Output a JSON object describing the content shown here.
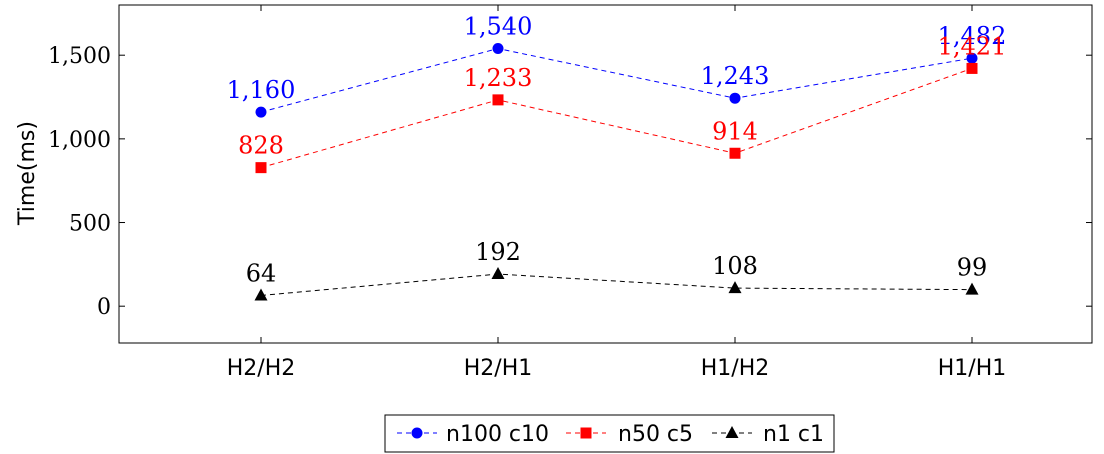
{
  "chart_data": {
    "type": "line",
    "ylabel": "Time(ms)",
    "xlabel": "",
    "categories": [
      "H2/H2",
      "H2/H1",
      "H1/H2",
      "H1/H1"
    ],
    "ylim": [
      -220,
      1800
    ],
    "yticks": [
      0,
      500,
      1000,
      1500
    ],
    "ytick_labels": [
      "0",
      "500",
      "1,000",
      "1,500"
    ],
    "grid": false,
    "legend_position": "bottom-center",
    "series": [
      {
        "name": "n100 c10",
        "values": [
          1160,
          1540,
          1243,
          1482
        ],
        "labels": [
          "1,160",
          "1,540",
          "1,243",
          "1,482"
        ],
        "color": "#0000ff",
        "marker": "circle",
        "line": "dashed"
      },
      {
        "name": "n50 c5",
        "values": [
          828,
          1233,
          914,
          1421
        ],
        "labels": [
          "828",
          "1,233",
          "914",
          "1,421"
        ],
        "color": "#ff0000",
        "marker": "square",
        "line": "dashed"
      },
      {
        "name": "n1 c1",
        "values": [
          64,
          192,
          108,
          99
        ],
        "labels": [
          "64",
          "192",
          "108",
          "99"
        ],
        "color": "#000000",
        "marker": "triangle",
        "line": "dashed"
      }
    ]
  }
}
